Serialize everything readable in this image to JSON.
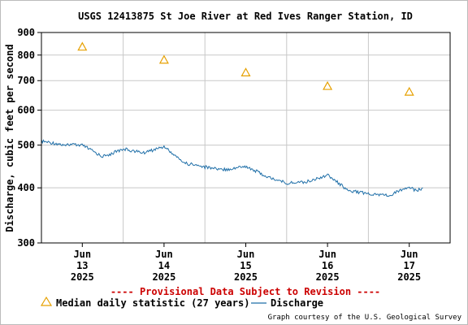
{
  "chart_data": {
    "type": "line",
    "title": "USGS 12413875 St Joe River at Red Ives Ranger Station, ID",
    "ylabel": "Discharge, cubic feet per second",
    "yscale": "log",
    "ylim": [
      300,
      900
    ],
    "yticks": [
      {
        "value": 300,
        "label": "300"
      },
      {
        "value": 400,
        "label": "400"
      },
      {
        "value": 500,
        "label": "500"
      },
      {
        "value": 600,
        "label": "600"
      },
      {
        "value": 700,
        "label": "700"
      },
      {
        "value": 800,
        "label": "800"
      },
      {
        "value": 900,
        "label": "900"
      }
    ],
    "xlim": [
      "2025-06-12T12:00",
      "2025-06-17T12:00"
    ],
    "xticks": [
      {
        "value": "2025-06-13T00:00",
        "lines": [
          "Jun",
          "13",
          "2025"
        ]
      },
      {
        "value": "2025-06-14T00:00",
        "lines": [
          "Jun",
          "14",
          "2025"
        ]
      },
      {
        "value": "2025-06-15T00:00",
        "lines": [
          "Jun",
          "15",
          "2025"
        ]
      },
      {
        "value": "2025-06-16T00:00",
        "lines": [
          "Jun",
          "16",
          "2025"
        ]
      },
      {
        "value": "2025-06-17T00:00",
        "lines": [
          "Jun",
          "17",
          "2025"
        ]
      }
    ],
    "grid": true,
    "series": [
      {
        "name": "Median daily statistic (27 years)",
        "kind": "marker-triangle",
        "color": "#e6a000",
        "x": [
          "2025-06-13T00:00",
          "2025-06-14T00:00",
          "2025-06-15T00:00",
          "2025-06-16T00:00",
          "2025-06-17T00:00"
        ],
        "y": [
          835,
          780,
          730,
          680,
          660
        ]
      },
      {
        "name": "Discharge",
        "kind": "line",
        "color": "#1f6fa8",
        "x": [
          "2025-06-12T12:00",
          "2025-06-12T18:00",
          "2025-06-13T00:00",
          "2025-06-13T06:00",
          "2025-06-13T12:00",
          "2025-06-13T18:00",
          "2025-06-14T00:00",
          "2025-06-14T06:00",
          "2025-06-14T12:00",
          "2025-06-14T18:00",
          "2025-06-15T00:00",
          "2025-06-15T06:00",
          "2025-06-15T12:00",
          "2025-06-15T18:00",
          "2025-06-16T00:00",
          "2025-06-16T06:00",
          "2025-06-16T12:00",
          "2025-06-16T18:00",
          "2025-06-17T00:00",
          "2025-06-17T02:00",
          "2025-06-17T04:00"
        ],
        "y": [
          510,
          502,
          500,
          470,
          490,
          480,
          496,
          455,
          446,
          440,
          448,
          425,
          410,
          413,
          428,
          395,
          388,
          385,
          402,
          394,
          400
        ]
      }
    ],
    "legend": [
      {
        "label": "Median daily statistic (27 years)",
        "symbol": "triangle",
        "color": "#e6a000"
      },
      {
        "label": "Discharge",
        "symbol": "line",
        "color": "#1f6fa8"
      }
    ],
    "legend_position": "bottom",
    "annotation": "---- Provisional Data Subject to Revision ----",
    "credit": "Graph courtesy of the U.S. Geological Survey"
  }
}
